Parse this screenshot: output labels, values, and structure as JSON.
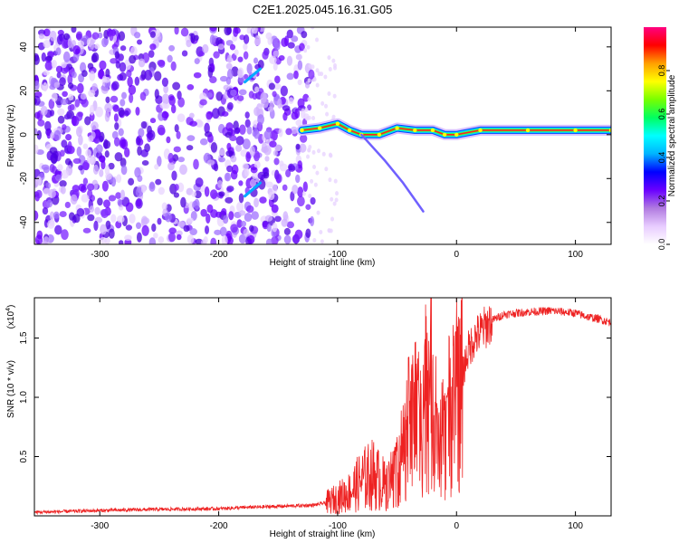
{
  "figure": {
    "title": "C2E1.2025.045.16.31.G05"
  },
  "chart_data": [
    {
      "type": "heatmap",
      "xlabel": "Height of straight line (km)",
      "ylabel": "Frequency (Hz)",
      "xlim": [
        -355,
        130
      ],
      "ylim": [
        -50,
        49
      ],
      "x_ticks": [
        -300,
        -200,
        -100,
        0,
        100
      ],
      "y_ticks": [
        -40,
        -20,
        0,
        20,
        40
      ],
      "colorbar": {
        "label": "Normalized spectral amplitude",
        "range": [
          0,
          1
        ],
        "ticks": [
          0.0,
          0.2,
          0.4,
          0.6,
          0.8
        ],
        "colormap": [
          "#ffffff",
          "#e8ccff",
          "#b07ae0",
          "#6a00ff",
          "#0000ff",
          "#00b4ff",
          "#00ffff",
          "#00ff60",
          "#78ff00",
          "#ffff00",
          "#ffa000",
          "#ff0000",
          "#ff0080"
        ]
      },
      "description_points": {
        "noise_region_x": [
          -355,
          -130
        ],
        "signal_line": [
          {
            "x": -130,
            "y": 2
          },
          {
            "x": -115,
            "y": 3
          },
          {
            "x": -100,
            "y": 5
          },
          {
            "x": -90,
            "y": 2
          },
          {
            "x": -80,
            "y": 0
          },
          {
            "x": -65,
            "y": 0
          },
          {
            "x": -50,
            "y": 3
          },
          {
            "x": -35,
            "y": 2
          },
          {
            "x": -20,
            "y": 2
          },
          {
            "x": -10,
            "y": 0
          },
          {
            "x": 0,
            "y": 0
          },
          {
            "x": 20,
            "y": 2
          },
          {
            "x": 60,
            "y": 2
          },
          {
            "x": 100,
            "y": 2
          },
          {
            "x": 130,
            "y": 2
          }
        ],
        "branch_line": [
          {
            "x": -80,
            "y": 0
          },
          {
            "x": -60,
            "y": -12
          },
          {
            "x": -45,
            "y": -22
          },
          {
            "x": -28,
            "y": -35
          }
        ],
        "upper_streak": [
          {
            "x": -178,
            "y": 24
          },
          {
            "x": -165,
            "y": 30
          }
        ],
        "lower_streak": [
          {
            "x": -178,
            "y": -28
          },
          {
            "x": -165,
            "y": -22
          }
        ]
      }
    },
    {
      "type": "line",
      "xlabel": "Height of straight line (km)",
      "ylabel": "SNR (10 * v/v)",
      "y_multiplier": "(x10",
      "y_multiplier_exp": "4",
      "y_multiplier_close": ")",
      "xlim": [
        -355,
        130
      ],
      "ylim": [
        0,
        18400
      ],
      "x_ticks": [
        -300,
        -200,
        -100,
        0,
        100
      ],
      "y_ticks": [
        5000,
        10000,
        15000
      ],
      "y_tick_labels": [
        "0.5",
        "1.0",
        "1.5"
      ],
      "series": [
        {
          "color": "#ee2222",
          "x": [
            -355,
            -300,
            -250,
            -200,
            -180,
            -150,
            -120,
            -110,
            -100,
            -90,
            -80,
            -70,
            -60,
            -50,
            -45,
            -40,
            -35,
            -30,
            -25,
            -20,
            -15,
            -10,
            -5,
            0,
            5,
            10,
            15,
            20,
            25,
            30,
            40,
            60,
            80,
            100,
            110,
            120,
            130
          ],
          "y": [
            300,
            450,
            550,
            600,
            700,
            800,
            900,
            1100,
            1500,
            2000,
            3000,
            3500,
            2500,
            4000,
            5500,
            7500,
            9000,
            8000,
            11000,
            10000,
            5000,
            7000,
            9000,
            10500,
            12000,
            14000,
            15000,
            15500,
            16000,
            16500,
            17000,
            17200,
            17300,
            17100,
            16800,
            16600,
            16300
          ]
        }
      ]
    }
  ]
}
